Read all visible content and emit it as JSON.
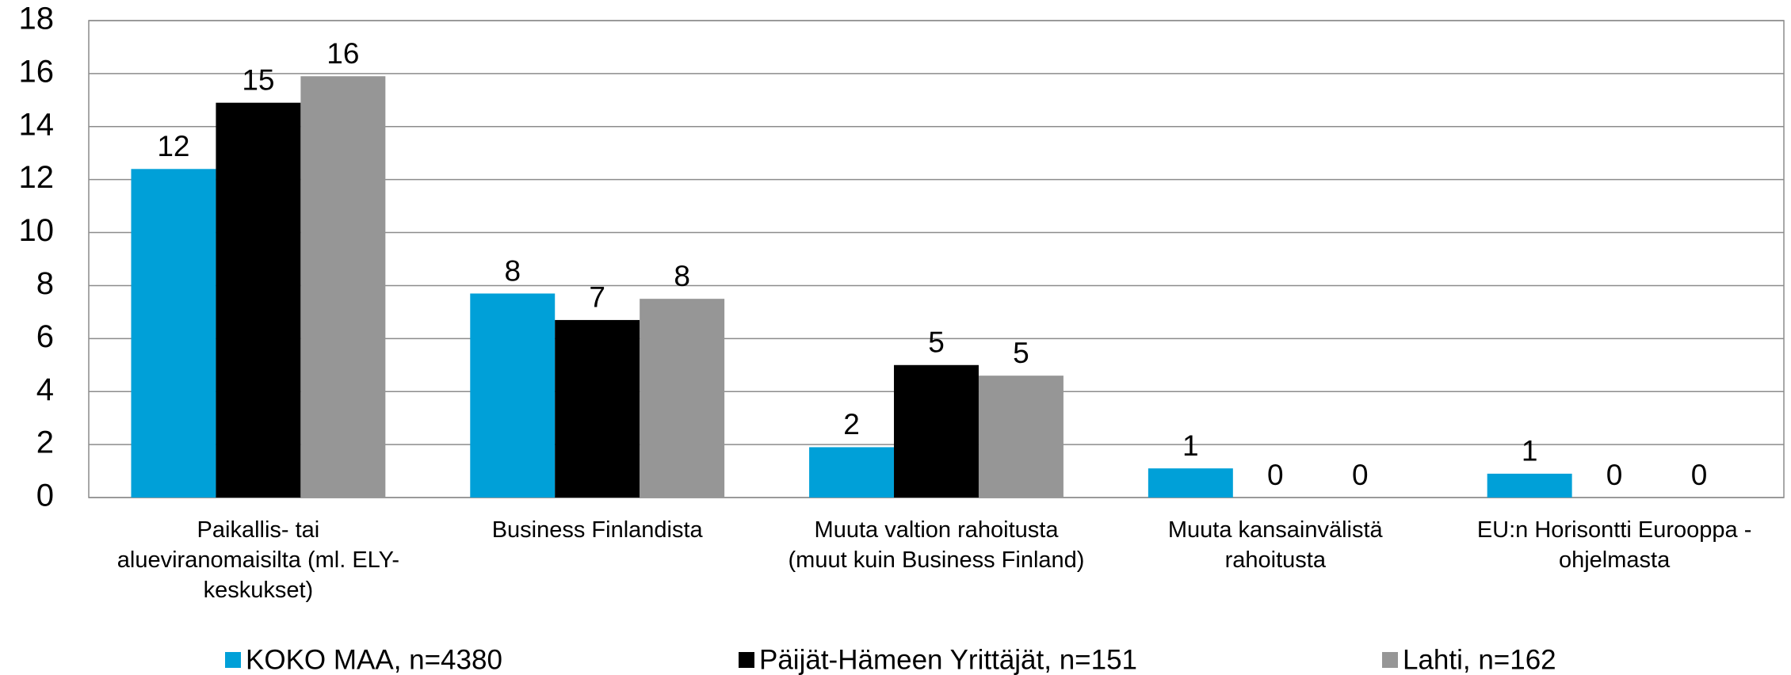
{
  "chart_data": {
    "type": "bar",
    "categories": [
      "Paikallis- tai alueviranomaisilta (ml. ELY-keskukset)",
      "Business Finlandista",
      "Muuta valtion rahoitusta (muut kuin Business Finland)",
      "Muuta kansainvälistä rahoitusta",
      "EU:n Horisontti Eurooppa -ohjelmasta"
    ],
    "series": [
      {
        "name": "KOKO MAA, n=4380",
        "color": "#00a0d8",
        "values": [
          12.4,
          7.7,
          1.9,
          1.1,
          0.9
        ],
        "value_labels": [
          "12",
          "8",
          "2",
          "1",
          "1"
        ]
      },
      {
        "name": "Päijät-Hämeen Yrittäjät, n=151",
        "color": "#000000",
        "values": [
          14.9,
          6.7,
          5.0,
          0,
          0
        ],
        "value_labels": [
          "15",
          "7",
          "5",
          "0",
          "0"
        ]
      },
      {
        "name": "Lahti, n=162",
        "color": "#969696",
        "values": [
          15.9,
          7.5,
          4.6,
          0,
          0
        ],
        "value_labels": [
          "16",
          "8",
          "5",
          "0",
          "0"
        ]
      }
    ],
    "ylim": [
      0,
      18
    ],
    "yticks": [
      0,
      2,
      4,
      6,
      8,
      10,
      12,
      14,
      16,
      18
    ],
    "grid": true,
    "legend": "bottom"
  }
}
